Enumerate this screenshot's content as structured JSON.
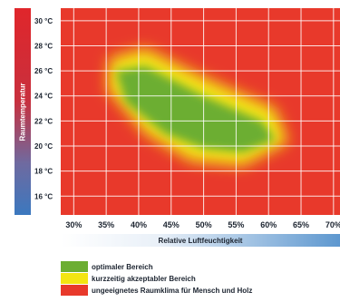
{
  "chart_data": {
    "type": "heatmap",
    "title": "",
    "ylabel": "Raumtemperatur",
    "xlabel": "Relative Luftfeuchtigkeit",
    "x_ticks": [
      "30%",
      "35%",
      "40%",
      "45%",
      "50%",
      "55%",
      "60%",
      "65%",
      "70%"
    ],
    "y_ticks": [
      "30 °C",
      "28 °C",
      "26 °C",
      "24 °C",
      "22 °C",
      "20 °C",
      "18 °C",
      "16 °C"
    ],
    "xlim": [
      28,
      71
    ],
    "ylim": [
      14.5,
      31
    ],
    "grid": true,
    "zones": [
      {
        "name": "optimaler Bereich",
        "color": "#6cae32",
        "polygon": [
          [
            36.5,
            26.0
          ],
          [
            41.0,
            26.4
          ],
          [
            50.0,
            24.0
          ],
          [
            59.0,
            22.0
          ],
          [
            61.0,
            20.5
          ],
          [
            56.0,
            19.5
          ],
          [
            50.0,
            19.8
          ],
          [
            44.0,
            21.0
          ],
          [
            38.0,
            23.5
          ]
        ]
      },
      {
        "name": "kurzzeitig akzeptabler Bereich",
        "color": "#f3e512",
        "polygon": [
          [
            35.5,
            27.0
          ],
          [
            41.0,
            27.8
          ],
          [
            50.0,
            25.5
          ],
          [
            61.0,
            23.0
          ],
          [
            63.0,
            20.3
          ],
          [
            56.0,
            18.4
          ],
          [
            48.0,
            18.8
          ],
          [
            41.0,
            21.0
          ],
          [
            35.2,
            24.5
          ]
        ]
      },
      {
        "name": "ungeeignetes Raumklima für Mensch und Holz",
        "color": "#e8392b",
        "polygon": []
      }
    ],
    "legend": [
      {
        "label": "optimaler Bereich",
        "color": "#6cae32"
      },
      {
        "label": "kurzzeitig akzeptabler Bereich",
        "color": "#f3e512"
      },
      {
        "label": "ungeeignetes Raumklima für Mensch und Holz",
        "color": "#e8392b"
      }
    ],
    "legend_position": "bottom-left"
  }
}
